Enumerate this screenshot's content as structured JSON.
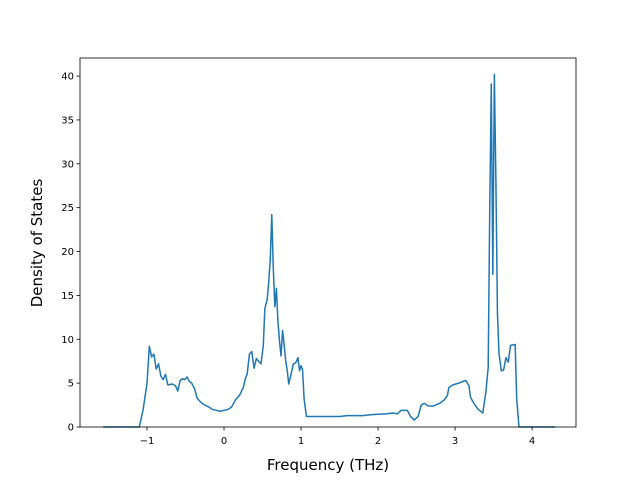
{
  "chart_data": {
    "type": "line",
    "xlabel": "Frequency (THz)",
    "ylabel": "Density of States",
    "xlim": [
      -1.87,
      4.57
    ],
    "ylim": [
      0,
      42.06
    ],
    "xticks": [
      {
        "value": -1,
        "label": "−1"
      },
      0,
      1,
      2,
      3,
      4
    ],
    "yticks": [
      0,
      5,
      10,
      15,
      20,
      25,
      30,
      35,
      40
    ],
    "series": [
      {
        "color": "#1f77b4",
        "x": [
          -1.57,
          -1.3,
          -1.1,
          -1.05,
          -1.0,
          -0.97,
          -0.94,
          -0.91,
          -0.88,
          -0.85,
          -0.82,
          -0.79,
          -0.76,
          -0.73,
          -0.67,
          -0.63,
          -0.6,
          -0.57,
          -0.54,
          -0.51,
          -0.48,
          -0.45,
          -0.42,
          -0.38,
          -0.35,
          -0.3,
          -0.25,
          -0.2,
          -0.15,
          -0.1,
          -0.05,
          0,
          0.05,
          0.1,
          0.15,
          0.2,
          0.25,
          0.28,
          0.3,
          0.33,
          0.36,
          0.39,
          0.42,
          0.45,
          0.48,
          0.51,
          0.53,
          0.56,
          0.58,
          0.6,
          0.62,
          0.64,
          0.66,
          0.68,
          0.7,
          0.72,
          0.74,
          0.76,
          0.78,
          0.8,
          0.82,
          0.84,
          0.87,
          0.9,
          0.93,
          0.96,
          0.98,
          1.0,
          1.02,
          1.04,
          1.07,
          1.2,
          1.5,
          1.6,
          1.8,
          1.9,
          2.1,
          2.2,
          2.25,
          2.3,
          2.38,
          2.42,
          2.47,
          2.52,
          2.56,
          2.6,
          2.65,
          2.72,
          2.8,
          2.86,
          2.9,
          2.92,
          2.97,
          3.05,
          3.1,
          3.14,
          3.18,
          3.2,
          3.25,
          3.3,
          3.33,
          3.36,
          3.4,
          3.43,
          3.45,
          3.47,
          3.49,
          3.51,
          3.53,
          3.55,
          3.57,
          3.6,
          3.63,
          3.66,
          3.69,
          3.72,
          3.78,
          3.8,
          3.83,
          4.0,
          4.3
        ],
        "values": [
          0,
          0,
          0,
          2,
          5,
          9.2,
          8,
          8.3,
          6.6,
          7.2,
          5.8,
          5.4,
          6,
          4.8,
          4.9,
          4.7,
          4.1,
          5.3,
          5.5,
          5.4,
          5.7,
          5.2,
          5.0,
          4.3,
          3.3,
          2.8,
          2.5,
          2.3,
          2.0,
          1.9,
          1.8,
          1.9,
          2.0,
          2.3,
          3.1,
          3.6,
          4.5,
          5.6,
          6.0,
          8.3,
          8.6,
          6.7,
          7.8,
          7.5,
          7.2,
          9.3,
          13.5,
          14.5,
          16.5,
          19,
          24.2,
          18,
          13.7,
          15.8,
          12,
          9.8,
          8.1,
          11,
          9.4,
          7.6,
          6.5,
          4.9,
          6.0,
          7.2,
          7.3,
          7.9,
          6.4,
          7.0,
          6.5,
          3.2,
          1.2,
          1.2,
          1.2,
          1.3,
          1.3,
          1.4,
          1.5,
          1.6,
          1.5,
          1.9,
          1.9,
          1.2,
          0.8,
          1.2,
          2.5,
          2.7,
          2.4,
          2.4,
          2.7,
          3.1,
          3.6,
          4.5,
          4.8,
          5.0,
          5.2,
          5.3,
          4.7,
          3.4,
          2.6,
          2.0,
          1.8,
          1.6,
          4.0,
          6.8,
          25,
          39.1,
          17.4,
          40.2,
          28,
          13,
          8.4,
          6.4,
          6.5,
          7.9,
          7.4,
          9.3,
          9.4,
          3.2,
          0,
          0,
          0
        ]
      }
    ]
  }
}
